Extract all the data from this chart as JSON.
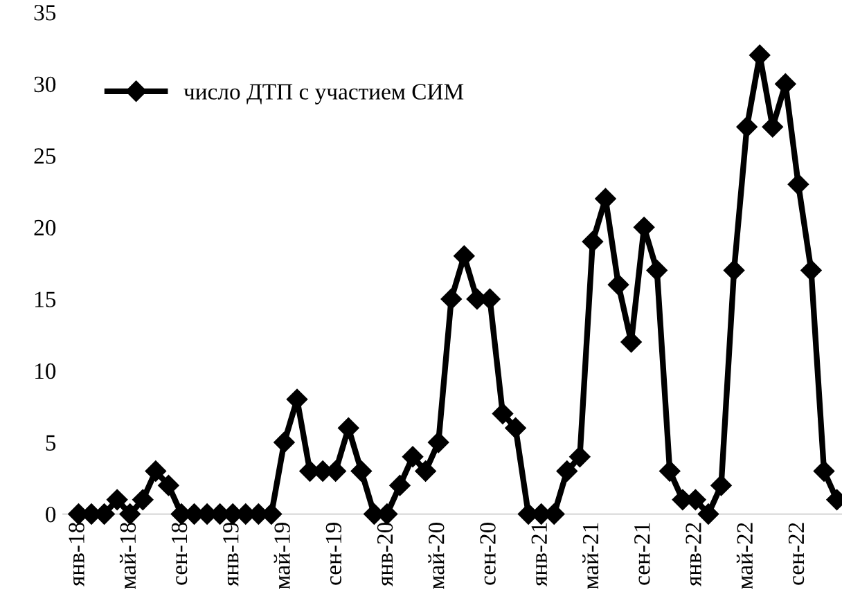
{
  "chart_data": {
    "type": "line",
    "categories": [
      "янв-18",
      null,
      null,
      null,
      "май-18",
      null,
      null,
      null,
      "сен-18",
      null,
      null,
      null,
      "янв-19",
      null,
      null,
      null,
      "май-19",
      null,
      null,
      null,
      "сен-19",
      null,
      null,
      null,
      "янв-20",
      null,
      null,
      null,
      "май-20",
      null,
      null,
      null,
      "сен-20",
      null,
      null,
      null,
      "янв-21",
      null,
      null,
      null,
      "май-21",
      null,
      null,
      null,
      "сен-21",
      null,
      null,
      null,
      "янв-22",
      null,
      null,
      null,
      "май-22",
      null,
      null,
      null,
      "сен-22",
      null,
      null,
      null
    ],
    "series": [
      {
        "name": "число ДТП с участием СИМ",
        "color": "#000000",
        "values": [
          0,
          0,
          0,
          1,
          0,
          1,
          3,
          2,
          0,
          0,
          0,
          0,
          0,
          0,
          0,
          0,
          5,
          8,
          3,
          3,
          3,
          6,
          3,
          0,
          0,
          2,
          4,
          3,
          5,
          15,
          18,
          15,
          15,
          7,
          6,
          0,
          0,
          0,
          3,
          4,
          19,
          22,
          16,
          12,
          20,
          17,
          3,
          1,
          1,
          0,
          2,
          17,
          27,
          32,
          27,
          30,
          23,
          17,
          3,
          1
        ]
      }
    ],
    "ylim": [
      0,
      35
    ],
    "yticks": [
      0,
      5,
      10,
      15,
      20,
      25,
      30,
      35
    ],
    "grid": false,
    "legend": "top left",
    "marker": "diamond",
    "line_style": "solid"
  }
}
